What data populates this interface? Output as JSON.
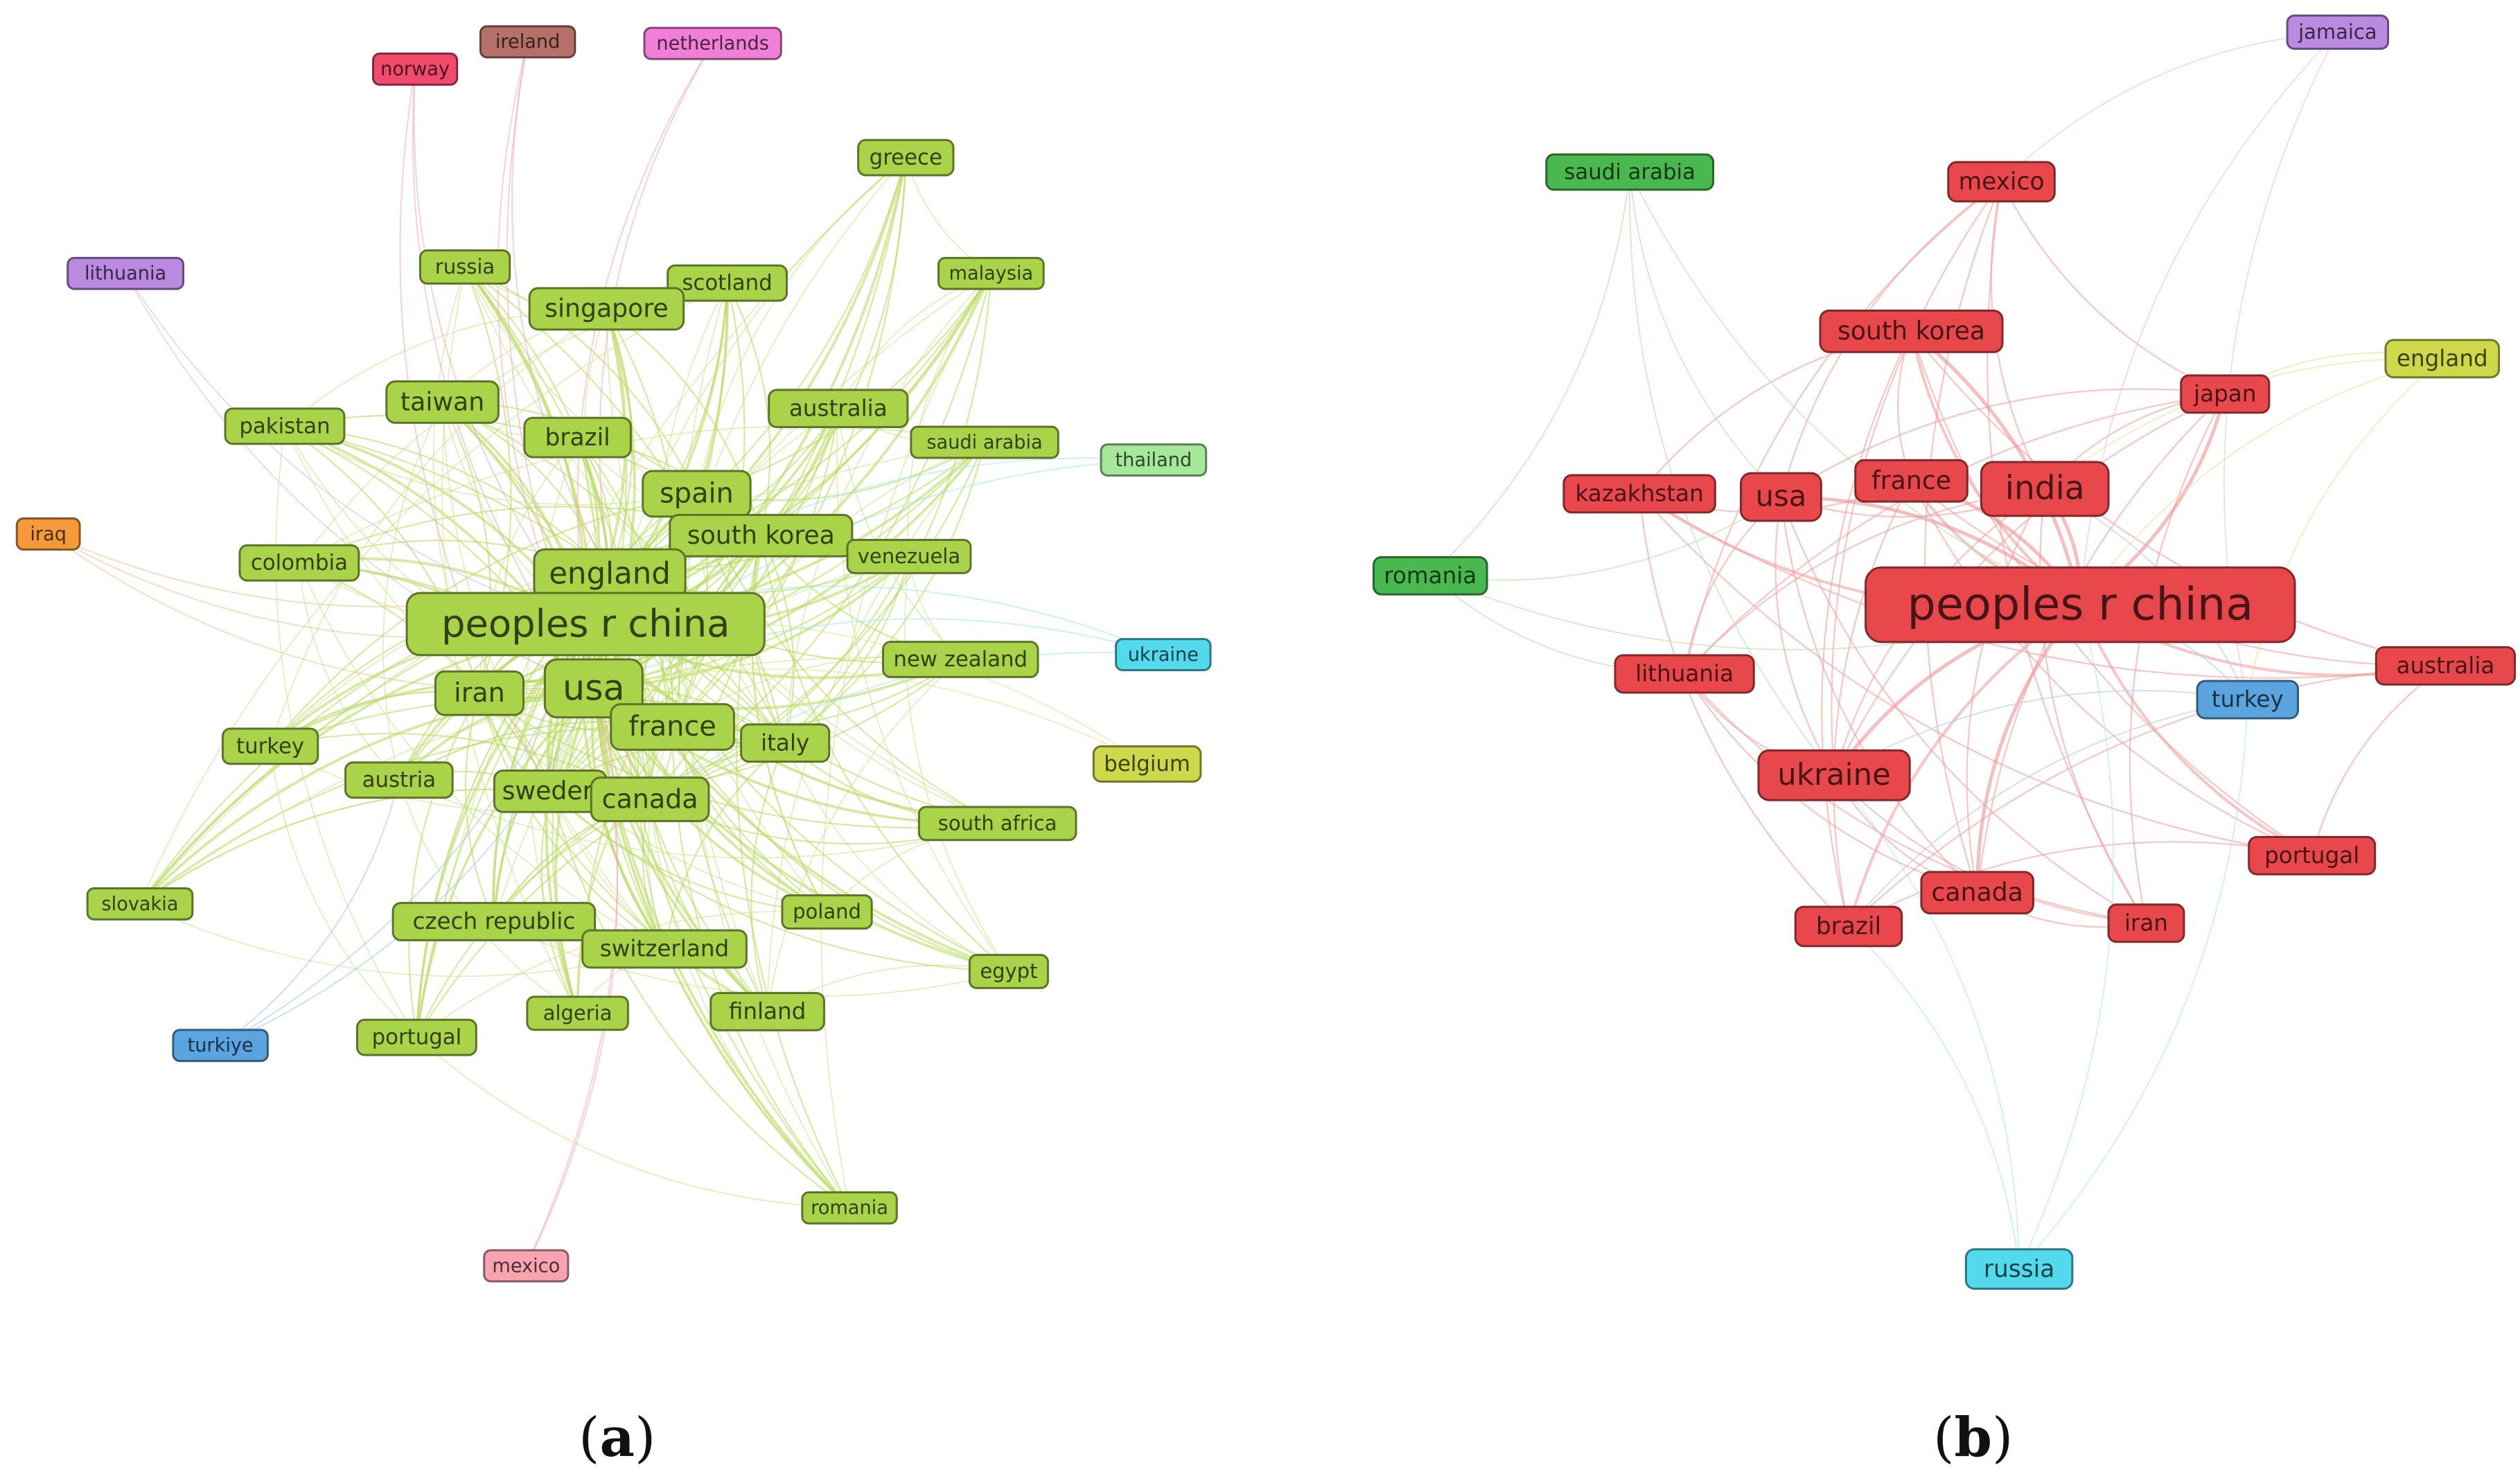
{
  "panels": [
    {
      "id": "a",
      "label": "a",
      "nodes": [
        {
          "id": "ireland",
          "label": "ireland",
          "color": "#b5706a"
        },
        {
          "id": "netherlands",
          "label": "netherlands",
          "color": "#f07fd8"
        },
        {
          "id": "norway",
          "label": "norway",
          "color": "#f04a6c"
        },
        {
          "id": "greece",
          "label": "greece",
          "color": "#a9d349"
        },
        {
          "id": "lithuania",
          "label": "lithuania",
          "color": "#b98ae0"
        },
        {
          "id": "russia",
          "label": "russia",
          "color": "#a9d349"
        },
        {
          "id": "scotland",
          "label": "scotland",
          "color": "#a9d349"
        },
        {
          "id": "malaysia",
          "label": "malaysia",
          "color": "#a9d349"
        },
        {
          "id": "singapore",
          "label": "singapore",
          "color": "#a9d349"
        },
        {
          "id": "taiwan",
          "label": "taiwan",
          "color": "#a9d349"
        },
        {
          "id": "australia",
          "label": "australia",
          "color": "#a9d349"
        },
        {
          "id": "pakistan",
          "label": "pakistan",
          "color": "#a9d349"
        },
        {
          "id": "brazil",
          "label": "brazil",
          "color": "#a9d349"
        },
        {
          "id": "saudi_arabia",
          "label": "saudi arabia",
          "color": "#a9d349"
        },
        {
          "id": "thailand",
          "label": "thailand",
          "color": "#a6e89a"
        },
        {
          "id": "iraq",
          "label": "iraq",
          "color": "#f59a3a"
        },
        {
          "id": "spain",
          "label": "spain",
          "color": "#a9d349"
        },
        {
          "id": "south_korea",
          "label": "south korea",
          "color": "#a9d349"
        },
        {
          "id": "colombia",
          "label": "colombia",
          "color": "#a9d349"
        },
        {
          "id": "venezuela",
          "label": "venezuela",
          "color": "#a9d349"
        },
        {
          "id": "england",
          "label": "england",
          "color": "#a9d349"
        },
        {
          "id": "peoples_r_china",
          "label": "peoples r china",
          "color": "#a9d349"
        },
        {
          "id": "ukraine",
          "label": "ukraine",
          "color": "#52d9ec"
        },
        {
          "id": "new_zealand",
          "label": "new zealand",
          "color": "#a9d349"
        },
        {
          "id": "usa",
          "label": "usa",
          "color": "#a9d349"
        },
        {
          "id": "iran",
          "label": "iran",
          "color": "#a9d349"
        },
        {
          "id": "france",
          "label": "france",
          "color": "#a9d349"
        },
        {
          "id": "italy",
          "label": "italy",
          "color": "#a9d349"
        },
        {
          "id": "turkey",
          "label": "turkey",
          "color": "#a9d349"
        },
        {
          "id": "belgium",
          "label": "belgium",
          "color": "#cdd84a"
        },
        {
          "id": "austria",
          "label": "austria",
          "color": "#a9d349"
        },
        {
          "id": "sweden",
          "label": "sweden",
          "color": "#a9d349"
        },
        {
          "id": "canada",
          "label": "canada",
          "color": "#a9d349"
        },
        {
          "id": "south_africa",
          "label": "south africa",
          "color": "#a9d349"
        },
        {
          "id": "slovakia",
          "label": "slovakia",
          "color": "#a9d349"
        },
        {
          "id": "czech_republic",
          "label": "czech republic",
          "color": "#a9d349"
        },
        {
          "id": "poland",
          "label": "poland",
          "color": "#a9d349"
        },
        {
          "id": "switzerland",
          "label": "switzerland",
          "color": "#a9d349"
        },
        {
          "id": "egypt",
          "label": "egypt",
          "color": "#a9d349"
        },
        {
          "id": "turkiye",
          "label": "turkiye",
          "color": "#5aa5e0"
        },
        {
          "id": "portugal",
          "label": "portugal",
          "color": "#a9d349"
        },
        {
          "id": "algeria",
          "label": "algeria",
          "color": "#a9d349"
        },
        {
          "id": "finland",
          "label": "finland",
          "color": "#a9d349"
        },
        {
          "id": "romania",
          "label": "romania",
          "color": "#a9d349"
        },
        {
          "id": "mexico",
          "label": "mexico",
          "color": "#f7a3b0"
        }
      ]
    },
    {
      "id": "b",
      "label": "b",
      "nodes": [
        {
          "id": "jamaica",
          "label": "jamaica",
          "color": "#b98ae0"
        },
        {
          "id": "saudi_arabia",
          "label": "saudi arabia",
          "color": "#49b84e"
        },
        {
          "id": "mexico",
          "label": "mexico",
          "color": "#e8484c"
        },
        {
          "id": "south_korea",
          "label": "south korea",
          "color": "#e8484c"
        },
        {
          "id": "england",
          "label": "england",
          "color": "#cdd84a"
        },
        {
          "id": "japan",
          "label": "japan",
          "color": "#e8484c"
        },
        {
          "id": "kazakhstan",
          "label": "kazakhstan",
          "color": "#e8484c"
        },
        {
          "id": "usa",
          "label": "usa",
          "color": "#e8484c"
        },
        {
          "id": "france",
          "label": "france",
          "color": "#e8484c"
        },
        {
          "id": "india",
          "label": "india",
          "color": "#e8484c"
        },
        {
          "id": "romania",
          "label": "romania",
          "color": "#49b84e"
        },
        {
          "id": "peoples_r_china",
          "label": "peoples r china",
          "color": "#e8484c"
        },
        {
          "id": "lithuania",
          "label": "lithuania",
          "color": "#e8484c"
        },
        {
          "id": "australia",
          "label": "australia",
          "color": "#e8484c"
        },
        {
          "id": "turkey",
          "label": "turkey",
          "color": "#5aa5e0"
        },
        {
          "id": "ukraine",
          "label": "ukraine",
          "color": "#e8484c"
        },
        {
          "id": "portugal",
          "label": "portugal",
          "color": "#e8484c"
        },
        {
          "id": "canada",
          "label": "canada",
          "color": "#e8484c"
        },
        {
          "id": "brazil",
          "label": "brazil",
          "color": "#e8484c"
        },
        {
          "id": "iran",
          "label": "iran",
          "color": "#e8484c"
        },
        {
          "id": "russia",
          "label": "russia",
          "color": "#52d9ec"
        }
      ]
    }
  ]
}
